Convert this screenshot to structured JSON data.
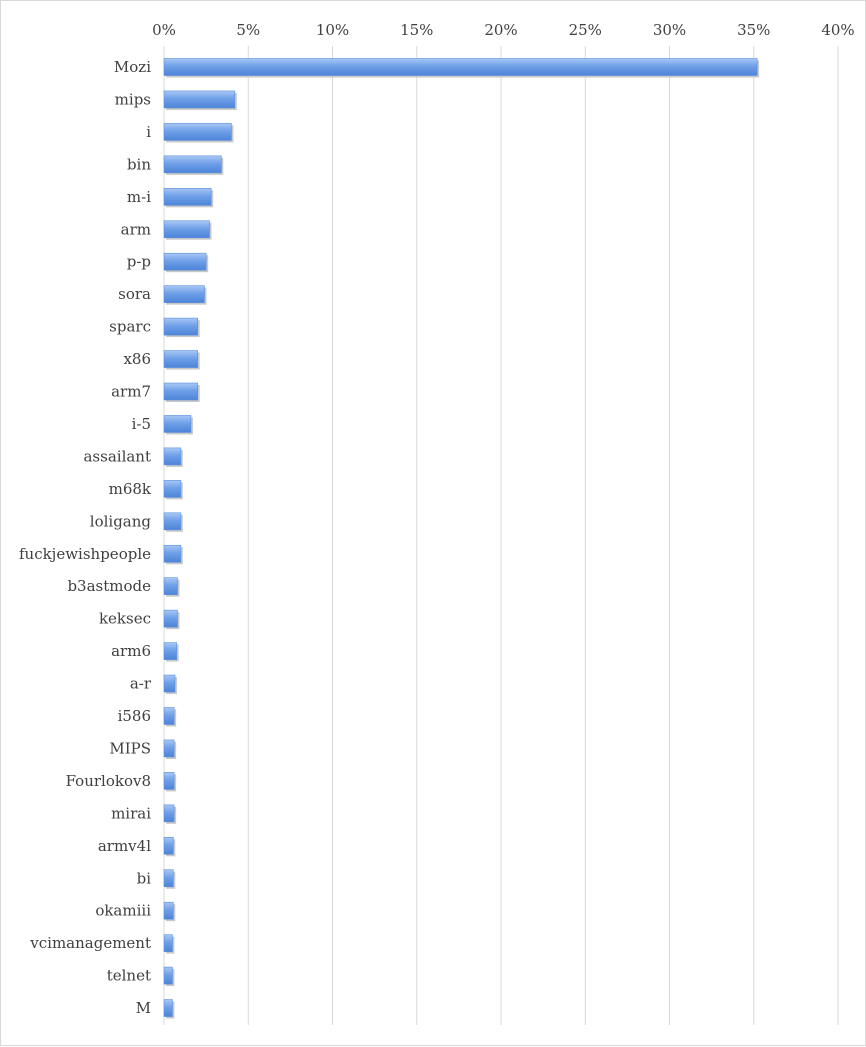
{
  "chart_data": {
    "type": "bar",
    "orientation": "horizontal",
    "title": "",
    "xlabel": "",
    "ylabel": "",
    "x_axis_position": "top",
    "grid": true,
    "legend": "none",
    "bar_color": "#6fa0e8",
    "xlim": [
      0,
      40
    ],
    "x_ticks": [
      "0%",
      "5%",
      "10%",
      "15%",
      "20%",
      "25%",
      "30%",
      "35%",
      "40%"
    ],
    "categories": [
      "Mozi",
      "mips",
      "i",
      "bin",
      "m-i",
      "arm",
      "p-p",
      "sora",
      "sparc",
      "x86",
      "arm7",
      "i-5",
      "assailant",
      "m68k",
      "loligang",
      "fuckjewishpeople",
      "b3astmode",
      "keksec",
      "arm6",
      "a-r",
      "i586",
      "MIPS",
      "Fourlokov8",
      "mirai",
      "armv4l",
      "bi",
      "okamiii",
      "vcimanagement",
      "telnet",
      "M"
    ],
    "values": [
      35.2,
      4.2,
      4.0,
      3.4,
      2.8,
      2.7,
      2.5,
      2.4,
      2.0,
      2.0,
      2.0,
      1.6,
      1.0,
      1.0,
      1.0,
      1.0,
      0.8,
      0.8,
      0.75,
      0.65,
      0.6,
      0.6,
      0.6,
      0.6,
      0.55,
      0.55,
      0.55,
      0.5,
      0.5,
      0.5
    ]
  }
}
